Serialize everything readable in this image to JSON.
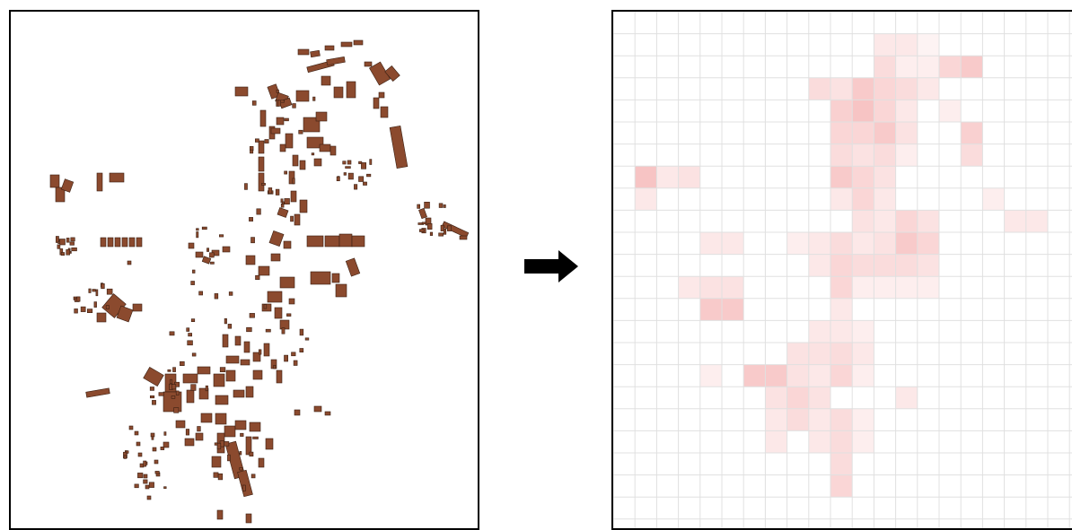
{
  "left_panel": {
    "kind": "building footprint map",
    "building_color": "#8B4A2E"
  },
  "arrow": {
    "icon": "right-arrow-icon",
    "color": "#000000"
  },
  "right_panel": {
    "kind": "grid density heatmap",
    "grid_line_color": "#e0e0e0",
    "heat_color": "#f08a8a",
    "cols": 21,
    "rows": 23,
    "cells": [
      [
        1,
        12,
        0.2
      ],
      [
        1,
        13,
        0.2
      ],
      [
        1,
        14,
        0.1
      ],
      [
        2,
        12,
        0.3
      ],
      [
        2,
        13,
        0.15
      ],
      [
        2,
        14,
        0.15
      ],
      [
        2,
        15,
        0.35
      ],
      [
        2,
        16,
        0.45
      ],
      [
        3,
        9,
        0.3
      ],
      [
        3,
        10,
        0.25
      ],
      [
        3,
        11,
        0.45
      ],
      [
        3,
        12,
        0.35
      ],
      [
        3,
        13,
        0.3
      ],
      [
        3,
        14,
        0.2
      ],
      [
        4,
        10,
        0.4
      ],
      [
        4,
        11,
        0.5
      ],
      [
        4,
        12,
        0.35
      ],
      [
        4,
        13,
        0.2
      ],
      [
        4,
        15,
        0.15
      ],
      [
        5,
        10,
        0.35
      ],
      [
        5,
        11,
        0.35
      ],
      [
        5,
        12,
        0.45
      ],
      [
        5,
        13,
        0.25
      ],
      [
        5,
        16,
        0.4
      ],
      [
        6,
        10,
        0.3
      ],
      [
        6,
        11,
        0.25
      ],
      [
        6,
        12,
        0.3
      ],
      [
        6,
        13,
        0.15
      ],
      [
        6,
        16,
        0.3
      ],
      [
        7,
        1,
        0.5
      ],
      [
        7,
        2,
        0.2
      ],
      [
        7,
        3,
        0.25
      ],
      [
        7,
        10,
        0.45
      ],
      [
        7,
        11,
        0.35
      ],
      [
        7,
        12,
        0.25
      ],
      [
        8,
        1,
        0.2
      ],
      [
        8,
        10,
        0.2
      ],
      [
        8,
        11,
        0.35
      ],
      [
        8,
        12,
        0.2
      ],
      [
        8,
        17,
        0.15
      ],
      [
        9,
        11,
        0.25
      ],
      [
        9,
        12,
        0.2
      ],
      [
        9,
        13,
        0.35
      ],
      [
        9,
        14,
        0.25
      ],
      [
        9,
        18,
        0.2
      ],
      [
        9,
        19,
        0.2
      ],
      [
        10,
        4,
        0.2
      ],
      [
        10,
        5,
        0.2
      ],
      [
        10,
        8,
        0.15
      ],
      [
        10,
        9,
        0.2
      ],
      [
        10,
        10,
        0.3
      ],
      [
        10,
        11,
        0.2
      ],
      [
        10,
        12,
        0.25
      ],
      [
        10,
        13,
        0.45
      ],
      [
        10,
        14,
        0.35
      ],
      [
        11,
        9,
        0.2
      ],
      [
        11,
        10,
        0.35
      ],
      [
        11,
        11,
        0.3
      ],
      [
        11,
        12,
        0.3
      ],
      [
        11,
        13,
        0.3
      ],
      [
        11,
        14,
        0.25
      ],
      [
        12,
        3,
        0.2
      ],
      [
        12,
        4,
        0.25
      ],
      [
        12,
        5,
        0.25
      ],
      [
        12,
        10,
        0.35
      ],
      [
        12,
        11,
        0.15
      ],
      [
        12,
        12,
        0.15
      ],
      [
        12,
        13,
        0.15
      ],
      [
        12,
        14,
        0.15
      ],
      [
        13,
        4,
        0.45
      ],
      [
        13,
        5,
        0.45
      ],
      [
        13,
        10,
        0.2
      ],
      [
        14,
        9,
        0.2
      ],
      [
        14,
        10,
        0.2
      ],
      [
        14,
        11,
        0.15
      ],
      [
        15,
        8,
        0.25
      ],
      [
        15,
        9,
        0.25
      ],
      [
        15,
        10,
        0.3
      ],
      [
        15,
        11,
        0.2
      ],
      [
        16,
        4,
        0.15
      ],
      [
        16,
        6,
        0.45
      ],
      [
        16,
        7,
        0.45
      ],
      [
        16,
        8,
        0.25
      ],
      [
        16,
        9,
        0.2
      ],
      [
        16,
        10,
        0.35
      ],
      [
        16,
        11,
        0.15
      ],
      [
        17,
        7,
        0.25
      ],
      [
        17,
        8,
        0.35
      ],
      [
        17,
        9,
        0.25
      ],
      [
        17,
        13,
        0.2
      ],
      [
        18,
        7,
        0.2
      ],
      [
        18,
        8,
        0.3
      ],
      [
        18,
        9,
        0.2
      ],
      [
        18,
        10,
        0.3
      ],
      [
        18,
        11,
        0.15
      ],
      [
        19,
        7,
        0.2
      ],
      [
        19,
        9,
        0.2
      ],
      [
        19,
        10,
        0.3
      ],
      [
        19,
        11,
        0.15
      ],
      [
        20,
        10,
        0.3
      ],
      [
        21,
        10,
        0.35
      ]
    ]
  }
}
